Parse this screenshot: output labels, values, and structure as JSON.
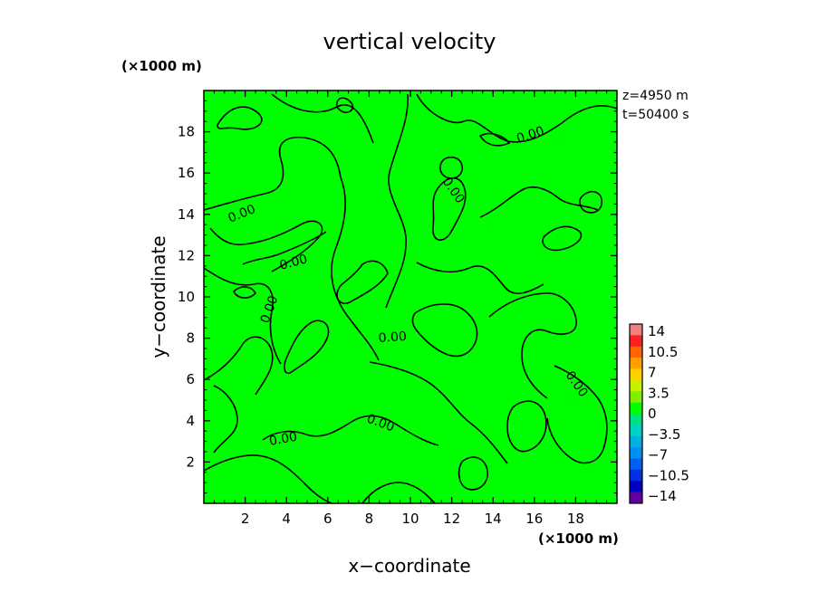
{
  "chart_data": {
    "type": "heatmap",
    "title": "vertical velocity",
    "xlabel": "x−coordinate",
    "ylabel": "y−coordinate",
    "x_unit": "(×1000 m)",
    "y_unit": "(×1000 m)",
    "xlim": [
      0,
      20
    ],
    "ylim": [
      0,
      20
    ],
    "x_ticks": [
      "2",
      "4",
      "6",
      "8",
      "10",
      "12",
      "14",
      "16",
      "18"
    ],
    "y_ticks": [
      "2",
      "4",
      "6",
      "8",
      "10",
      "12",
      "14",
      "16",
      "18"
    ],
    "annotations": [
      "z=4950  m",
      "t=50400  s"
    ],
    "field_value_approx": 0,
    "contour_level": 0,
    "contour_label": "0.00",
    "colorbar": {
      "min": -14,
      "max": 14,
      "step": 1.75,
      "tick_labels": [
        "14",
        "10.5",
        "7",
        "3.5",
        "0",
        "−3.5",
        "−7",
        "−10.5",
        "−14"
      ],
      "colors": [
        "#f08080",
        "#ff2020",
        "#ff6600",
        "#ffa000",
        "#ffd000",
        "#c8f000",
        "#80f000",
        "#00ff00",
        "#00e080",
        "#00d0c0",
        "#00b0e0",
        "#0090f0",
        "#0060f0",
        "#0030e0",
        "#0000c0",
        "#6000a0"
      ]
    },
    "background_color": "#00ff00"
  }
}
